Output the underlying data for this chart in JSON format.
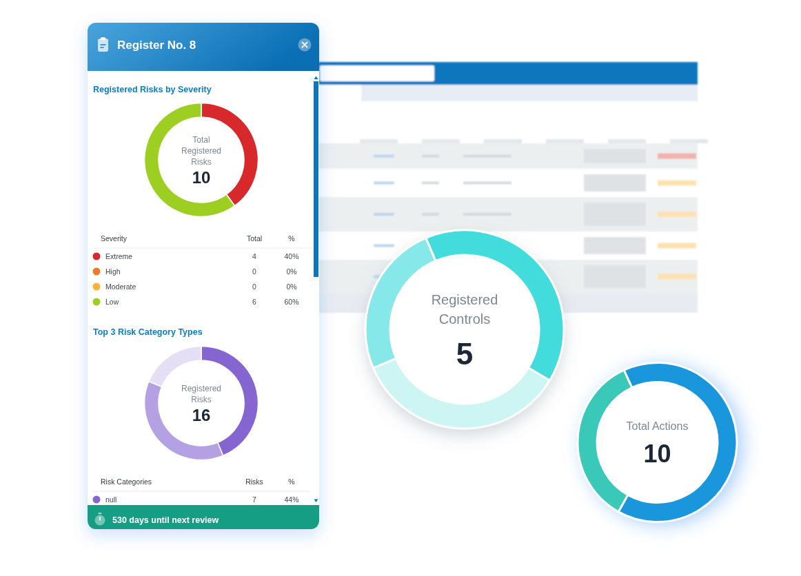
{
  "chart_data": [
    {
      "type": "other",
      "title": "Register No. 8",
      "annotations": [
        "530 days until next review"
      ]
    },
    {
      "type": "donut",
      "title": "Registered Risks by Severity",
      "categories": [
        "Extreme",
        "High",
        "Moderate",
        "Low"
      ],
      "values": [
        4,
        0,
        0,
        6
      ],
      "colors": [
        "#d7282c",
        "#f07b2b",
        "#fbb23a",
        "#9dcf22"
      ],
      "legend": "bottom",
      "legend_title": "Severity",
      "value_labels": [
        "4",
        "0",
        "0",
        "6"
      ],
      "totals": [
        "10"
      ],
      "annotations": [
        "Total Registered Risks",
        "Total",
        "%",
        "40%",
        "0%",
        "0%",
        "60%"
      ]
    },
    {
      "type": "donut",
      "title": "Top 3 Risk Category Types",
      "categories": [
        "null",
        null,
        null
      ],
      "values": [
        7,
        6,
        3
      ],
      "colors": [
        "#8566d0",
        "#b4a1e4",
        "#e5dff6"
      ],
      "legend": "bottom",
      "legend_title": "Risk Categories",
      "value_labels": [
        "7",
        null,
        null
      ],
      "totals": [
        "16"
      ],
      "annotations": [
        "Registered Risks",
        "Risks",
        "%",
        "44%"
      ]
    },
    {
      "type": "donut",
      "title": "Registered Controls",
      "categories": [
        null,
        null,
        null
      ],
      "values": [
        40,
        35,
        25
      ],
      "colors": [
        "#43dcdc",
        "#cdf5f4",
        "#86e8e8"
      ],
      "annotations": [
        "5"
      ]
    },
    {
      "type": "donut",
      "title": "Total Actions",
      "categories": [
        null,
        null
      ],
      "values": [
        65,
        35
      ],
      "colors": [
        "#1996dc",
        "#3ac8b8"
      ],
      "annotations": [
        "10"
      ]
    }
  ]
}
